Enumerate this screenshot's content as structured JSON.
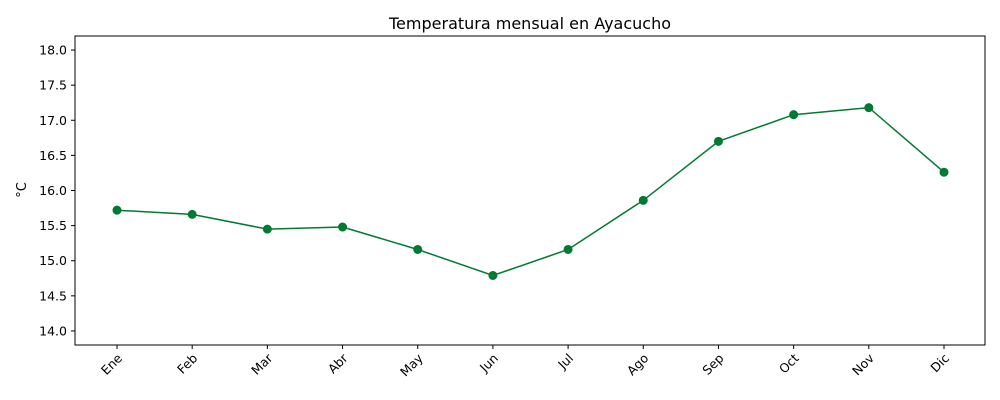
{
  "chart_data": {
    "type": "line",
    "title": "Temperatura mensual en Ayacucho",
    "xlabel": "",
    "ylabel": "°C",
    "categories": [
      "Ene",
      "Feb",
      "Mar",
      "Abr",
      "May",
      "Jun",
      "Jul",
      "Ago",
      "Sep",
      "Oct",
      "Nov",
      "Dic"
    ],
    "series": [
      {
        "values": [
          15.72,
          15.66,
          15.45,
          15.48,
          15.16,
          14.79,
          15.16,
          15.86,
          16.7,
          17.08,
          17.18,
          16.26
        ],
        "color": "#007a33",
        "marker": "circle"
      }
    ],
    "ylim": [
      13.8,
      18.2
    ],
    "yticks": [
      "14.0",
      "14.5",
      "15.0",
      "15.5",
      "16.0",
      "16.5",
      "17.0",
      "17.5",
      "18.0"
    ],
    "grid": false,
    "legend": "none"
  }
}
